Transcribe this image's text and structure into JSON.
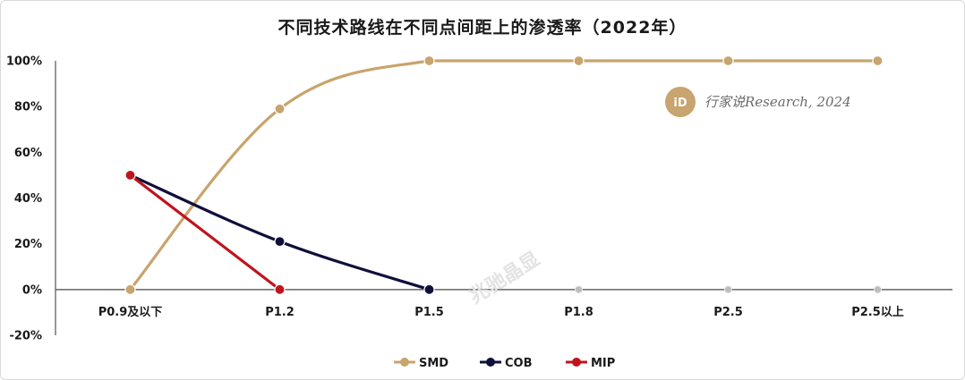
{
  "chart_data": {
    "type": "line",
    "title": "不同技术路线在不同点间距上的渗透率（2022年）",
    "categories": [
      "P0.9及以下",
      "P1.2",
      "P1.5",
      "P1.8",
      "P2.5",
      "P2.5以上"
    ],
    "yticks": [
      "100%",
      "80%",
      "60%",
      "40%",
      "20%",
      "0%",
      "-20%"
    ],
    "ylim": [
      -20,
      100
    ],
    "series": [
      {
        "name": "SMD",
        "color": "#C8A46E",
        "values": [
          0,
          79,
          100,
          100,
          100,
          100
        ]
      },
      {
        "name": "COB",
        "color": "#0F0F3A",
        "values": [
          50,
          21,
          0,
          null,
          null,
          null
        ]
      },
      {
        "name": "MIP",
        "color": "#C0141C",
        "values": [
          50,
          0,
          null,
          null,
          null,
          null
        ]
      }
    ],
    "empty_markers": [
      0,
      0,
      0
    ],
    "legend_position": "bottom-center"
  },
  "watermark": {
    "logo_text": "行家说",
    "text": "行家说Research, 2024",
    "diagonal_text": "兆驰晶显"
  }
}
